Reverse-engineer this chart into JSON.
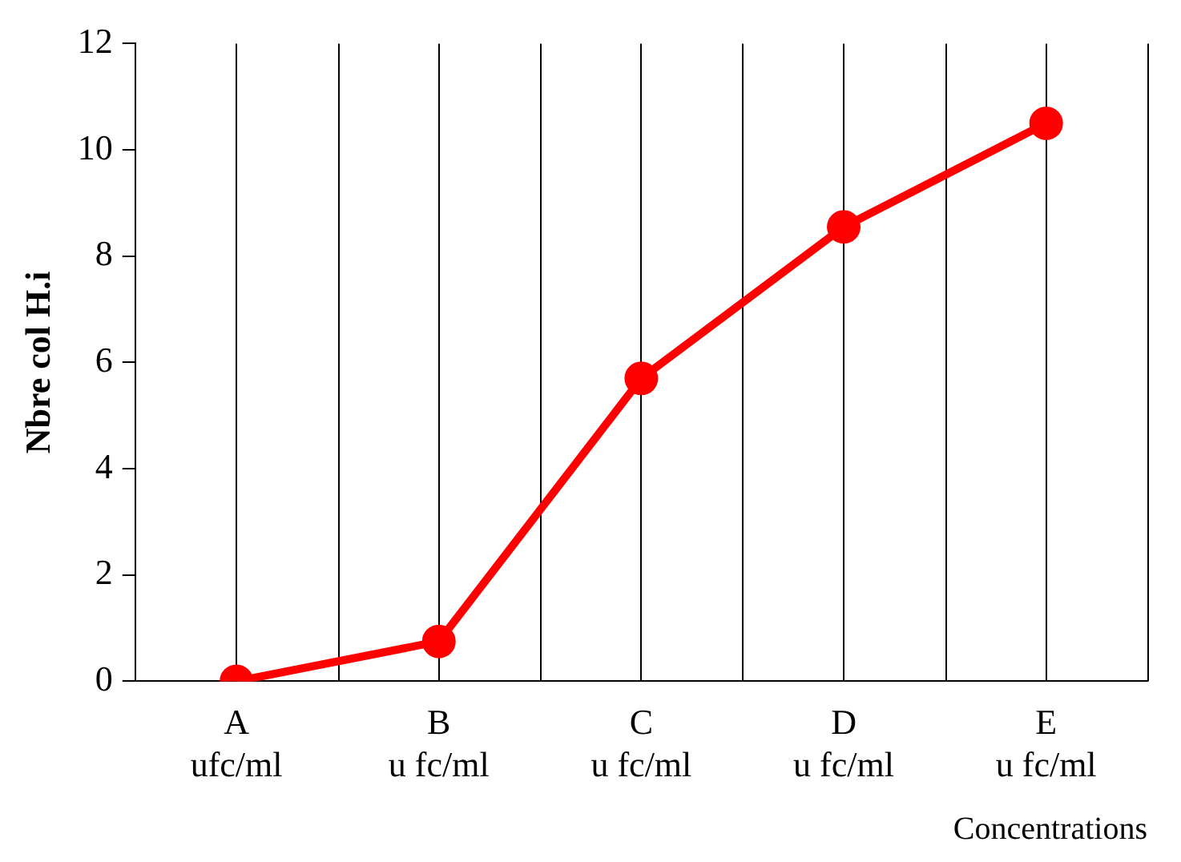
{
  "chart_data": {
    "type": "line",
    "xlabel": "Concentrations",
    "ylabel": "Nbre col H.i",
    "categories": [
      "A\nufc/ml",
      "B\nu fc/ml",
      "C\nu fc/ml",
      "D\nu fc/ml",
      "E\nu fc/ml"
    ],
    "series": [
      {
        "color": "#ff0000",
        "values": [
          0,
          0.75,
          5.7,
          8.55,
          10.5
        ]
      }
    ],
    "ylim": [
      0,
      12
    ],
    "yticks": [
      0,
      2,
      4,
      6,
      8,
      10,
      12
    ],
    "grid": "x",
    "legend": false,
    "marker": "circle",
    "line_style": "solid"
  }
}
